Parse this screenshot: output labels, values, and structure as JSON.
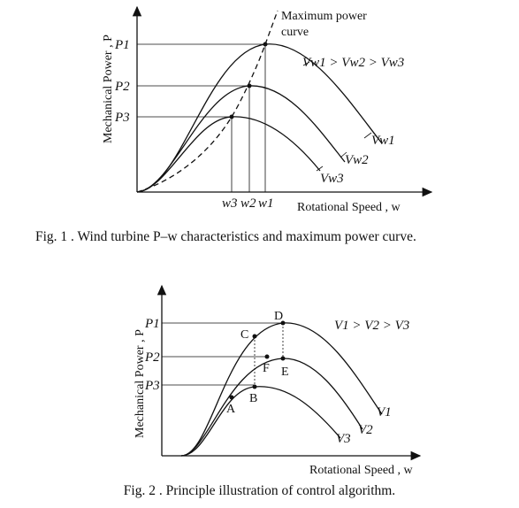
{
  "fig1": {
    "y_axis_label": "Mechanical Power , P",
    "x_axis_label": "Rotational Speed , w",
    "power_labels": [
      "P1",
      "P2",
      "P3"
    ],
    "speed_labels": [
      "w3",
      "w2",
      "w1"
    ],
    "annotation": [
      "Maximum power",
      "curve"
    ],
    "relation": "Vw1 > Vw2 > Vw3",
    "curve_labels": [
      "Vw1",
      "Vw2",
      "Vw3"
    ],
    "caption": "Fig. 1 . Wind turbine P–w characteristics and maximum power curve."
  },
  "fig2": {
    "y_axis_label": "Mechanical Power , P",
    "x_axis_label": "Rotational Speed , w",
    "power_labels": [
      "P1",
      "P2",
      "P3"
    ],
    "points": [
      "A",
      "B",
      "C",
      "D",
      "E",
      "F"
    ],
    "relation": "V1 > V2 > V3",
    "curve_labels": [
      "V1",
      "V2",
      "V3"
    ],
    "caption": "Fig. 2 . Principle illustration of control algorithm."
  }
}
